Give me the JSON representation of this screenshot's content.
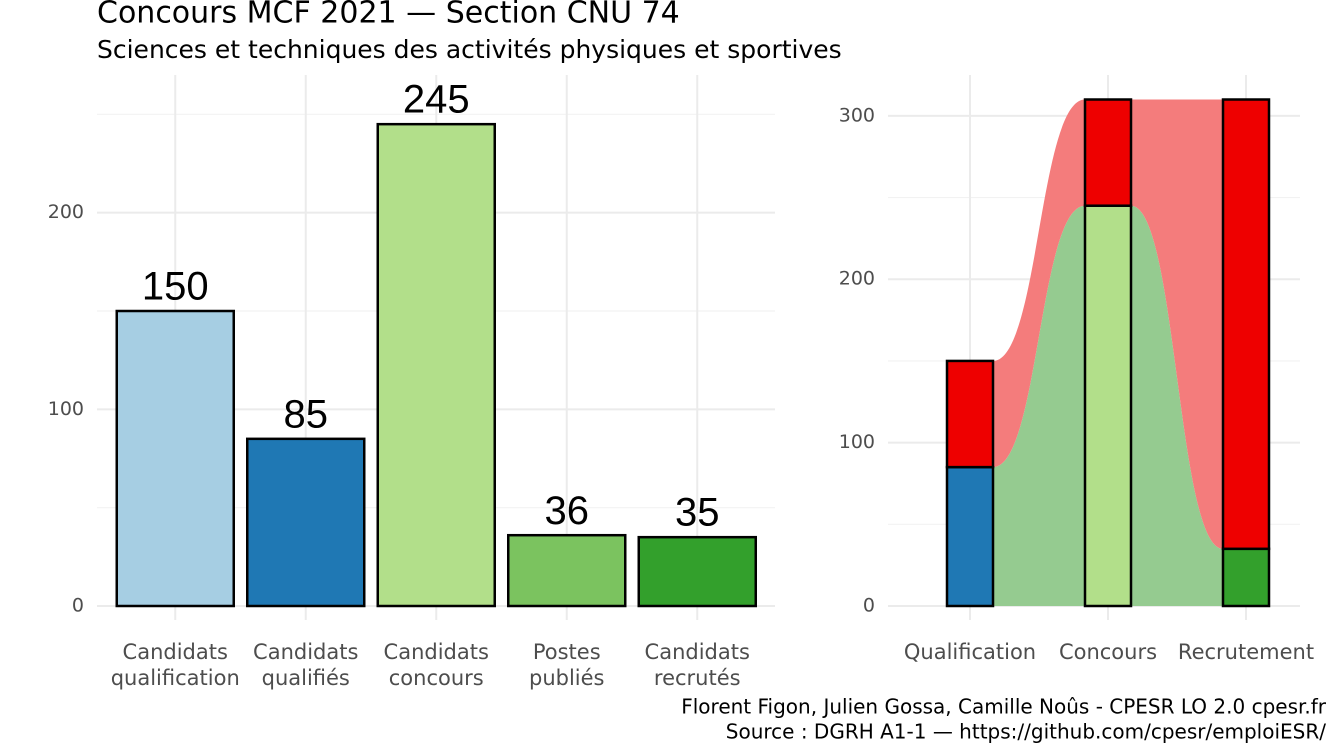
{
  "title": "Concours MCF  2021  —  Section CNU 74",
  "subtitle": "Sciences et techniques des activités physiques et sportives",
  "caption": [
    "Florent Figon, Julien Gossa, Camille Noûs - CPESR LO 2.0 cpesr.fr",
    "Source : DGRH A1-1 — https://github.com/cpesr/emploiESR/"
  ],
  "chart_data": [
    {
      "type": "bar",
      "categories": [
        [
          "Candidats",
          "qualification"
        ],
        [
          "Candidats",
          "qualifiés"
        ],
        [
          "Candidats",
          "concours"
        ],
        [
          "Postes",
          "publiés"
        ],
        [
          "Candidats",
          "recrutés"
        ]
      ],
      "values": [
        150,
        85,
        245,
        36,
        35
      ],
      "colors": [
        "#a6cee3",
        "#1f78b4",
        "#b2df8a",
        "#7bc35f",
        "#33a02c"
      ],
      "ylim": [
        0,
        270
      ],
      "yticks": [
        0,
        100,
        200
      ],
      "minor_yticks": [
        50,
        150,
        250
      ],
      "grid": true
    },
    {
      "type": "bar",
      "stacked": true,
      "flows": true,
      "categories": [
        "Qualification",
        "Concours",
        "Recrutement"
      ],
      "series": [
        {
          "colors": [
            "#1f78b4",
            "#b2df8a",
            "#33a02c"
          ],
          "flow_color": "#95cb90",
          "values": [
            85,
            245,
            35
          ]
        },
        {
          "colors": [
            "#ee0000",
            "#ee0000",
            "#ee0000"
          ],
          "flow_color": "#f47c7c",
          "values": [
            65,
            65,
            275
          ]
        }
      ],
      "ylim": [
        0,
        325
      ],
      "yticks": [
        0,
        100,
        200,
        300
      ],
      "minor_yticks": [
        50,
        150,
        250
      ],
      "grid": true
    }
  ]
}
